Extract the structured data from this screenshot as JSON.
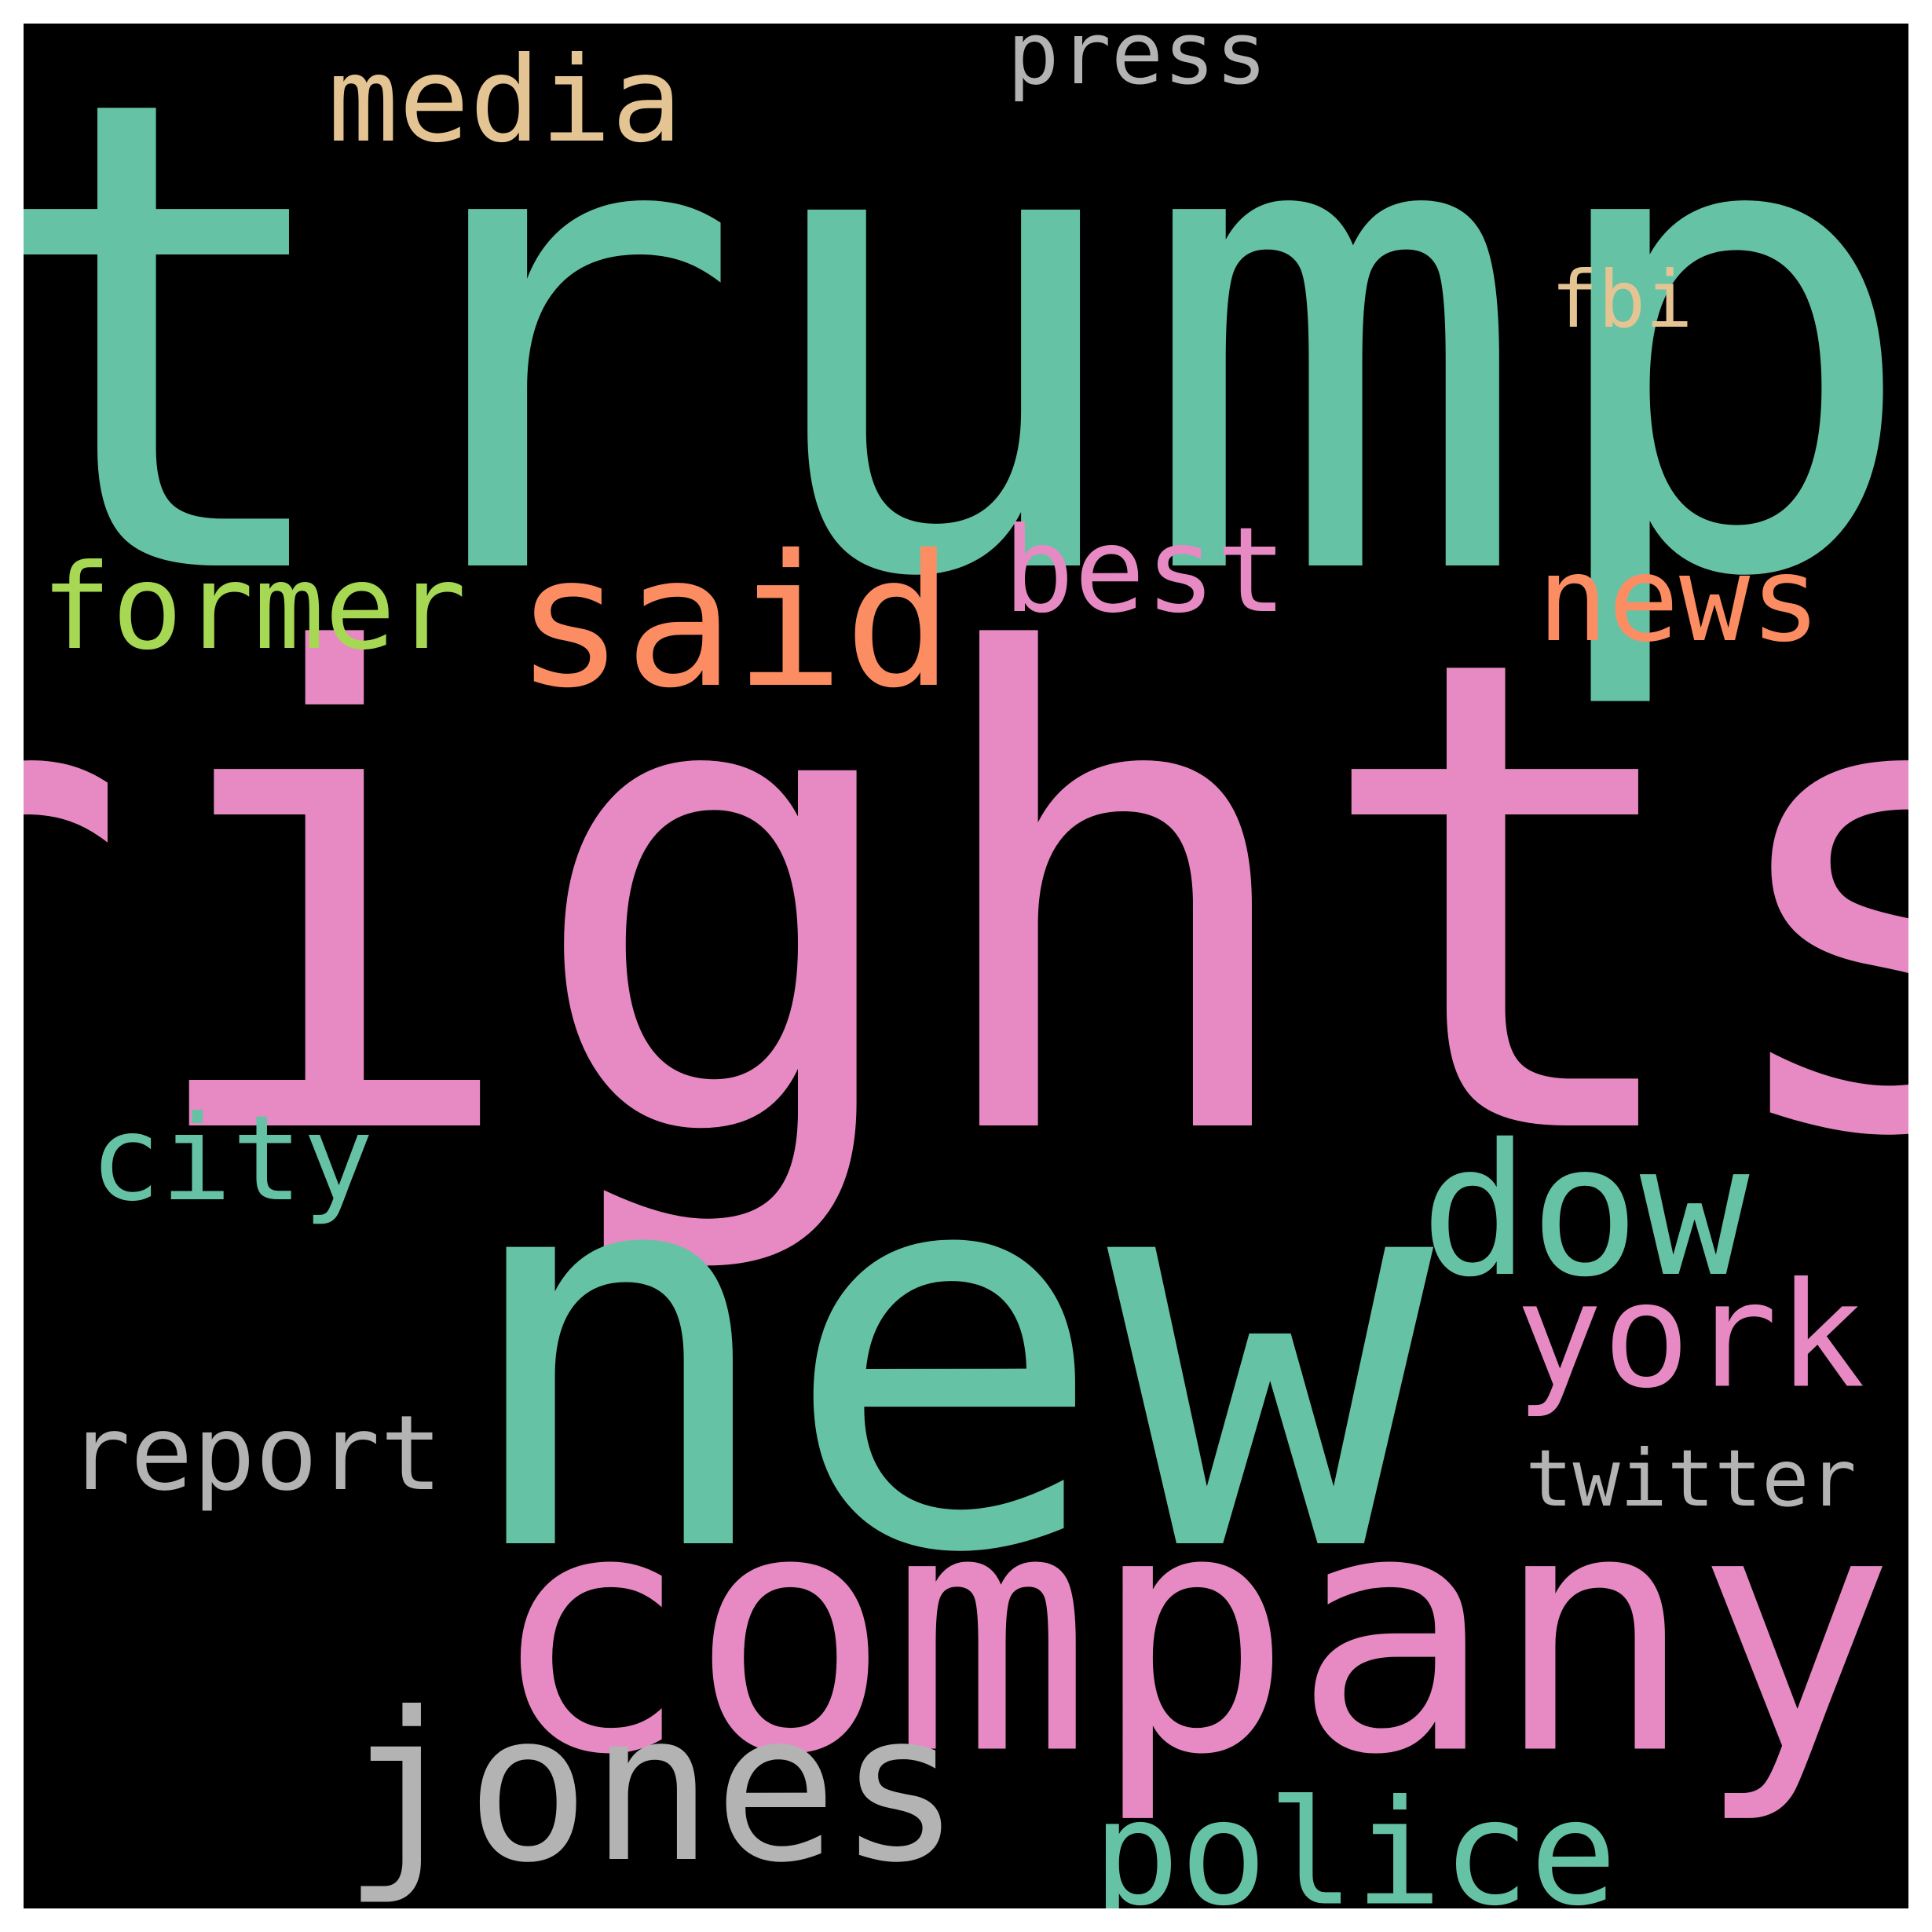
{
  "words": {
    "trump": {
      "text": "trump",
      "color": "#66c2a5"
    },
    "rights": {
      "text": "rights",
      "color": "#e78ac3"
    },
    "new": {
      "text": "new",
      "color": "#66c2a5"
    },
    "company": {
      "text": "company",
      "color": "#e78ac3"
    },
    "jones": {
      "text": "jones",
      "color": "#b3b3b3"
    },
    "said": {
      "text": "said",
      "color": "#fc8d62"
    },
    "dow": {
      "text": "dow",
      "color": "#66c2a5"
    },
    "york": {
      "text": "york",
      "color": "#e78ac3"
    },
    "police": {
      "text": "police",
      "color": "#66c2a5"
    },
    "media": {
      "text": "media",
      "color": "#e5c494"
    },
    "former": {
      "text": "former",
      "color": "#a6d854"
    },
    "best": {
      "text": "best",
      "color": "#e78ac3"
    },
    "news": {
      "text": "news",
      "color": "#fc8d62"
    },
    "city": {
      "text": "city",
      "color": "#66c2a5"
    },
    "report": {
      "text": "report",
      "color": "#b3b3b3"
    },
    "press": {
      "text": "press",
      "color": "#b3b3b3"
    },
    "fbi": {
      "text": "fbi",
      "color": "#e5c494"
    },
    "twitter": {
      "text": "twitter",
      "color": "#b3b3b3"
    }
  }
}
